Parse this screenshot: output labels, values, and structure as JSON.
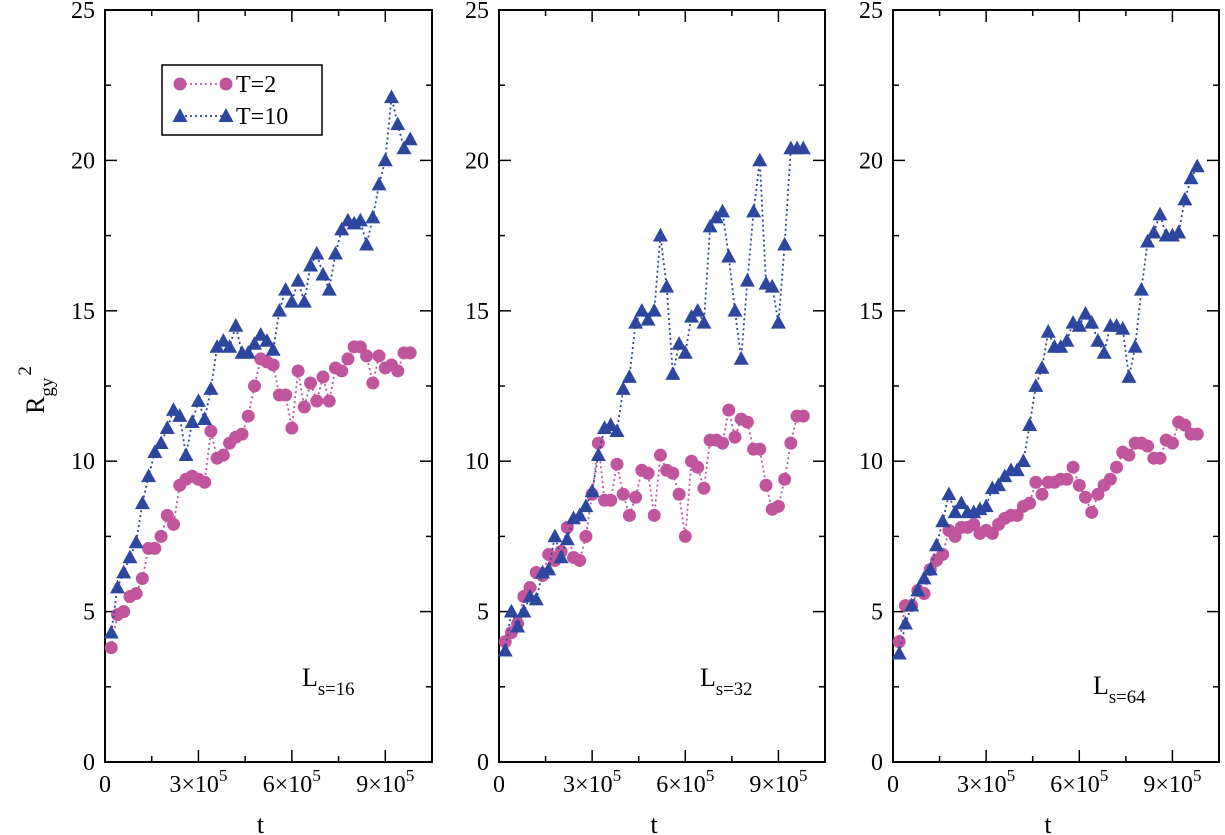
{
  "colors": {
    "T2": "#c0559e",
    "T10": "#2e479e"
  },
  "chart_data": [
    {
      "type": "line",
      "ylabel": "R_gy^2",
      "xlabel": "t",
      "annotation": "L_s=16",
      "ylim": [
        0,
        25
      ],
      "xlim": [
        0,
        1050000
      ],
      "yticks": [
        "0",
        "5",
        "10",
        "15",
        "20",
        "25"
      ],
      "xticks": [
        "0",
        "3×10^5",
        "6×10^5",
        "9×10^5"
      ],
      "legend": {
        "position": "top-left",
        "entries": [
          "T=2",
          "T=10"
        ]
      },
      "series": [
        {
          "name": "T=2",
          "marker": "circle",
          "x": [
            20000,
            40000,
            60000,
            80000,
            100000,
            120000,
            140000,
            160000,
            180000,
            200000,
            220000,
            240000,
            260000,
            280000,
            300000,
            320000,
            340000,
            360000,
            380000,
            400000,
            420000,
            440000,
            460000,
            480000,
            500000,
            520000,
            540000,
            560000,
            580000,
            600000,
            620000,
            640000,
            660000,
            680000,
            700000,
            720000,
            740000,
            760000,
            780000,
            800000,
            820000,
            840000,
            860000,
            880000,
            900000,
            920000,
            940000,
            960000,
            980000
          ],
          "y": [
            3.8,
            4.9,
            5.0,
            5.5,
            5.6,
            6.1,
            7.1,
            7.1,
            7.5,
            8.2,
            7.9,
            9.2,
            9.4,
            9.5,
            9.4,
            9.3,
            11.0,
            10.1,
            10.2,
            10.6,
            10.8,
            10.9,
            11.5,
            12.5,
            13.4,
            13.3,
            13.2,
            12.2,
            12.2,
            11.1,
            13.0,
            11.8,
            12.6,
            12.0,
            12.8,
            12.0,
            13.1,
            13.0,
            13.4,
            13.8,
            13.8,
            13.5,
            12.6,
            13.5,
            13.1,
            13.2,
            13.0,
            13.6,
            13.6
          ]
        },
        {
          "name": "T=10",
          "marker": "triangle",
          "x": [
            20000,
            40000,
            60000,
            80000,
            100000,
            120000,
            140000,
            160000,
            180000,
            200000,
            220000,
            240000,
            260000,
            280000,
            300000,
            320000,
            340000,
            360000,
            380000,
            400000,
            420000,
            440000,
            460000,
            480000,
            500000,
            520000,
            540000,
            560000,
            580000,
            600000,
            620000,
            640000,
            660000,
            680000,
            700000,
            720000,
            740000,
            760000,
            780000,
            800000,
            820000,
            840000,
            860000,
            880000,
            900000,
            920000,
            940000,
            960000,
            980000
          ],
          "y": [
            4.3,
            5.8,
            6.3,
            6.8,
            7.3,
            8.6,
            9.5,
            10.3,
            10.6,
            11.1,
            11.7,
            11.5,
            10.2,
            11.3,
            12.0,
            11.4,
            12.4,
            13.8,
            14.0,
            13.8,
            14.5,
            13.6,
            13.6,
            13.9,
            14.2,
            14.0,
            13.7,
            15.0,
            15.7,
            15.3,
            16.0,
            15.3,
            16.5,
            16.9,
            16.2,
            15.7,
            16.9,
            17.7,
            18.0,
            17.9,
            18.0,
            17.2,
            18.1,
            19.2,
            20.0,
            22.1,
            21.2,
            20.4,
            20.7
          ]
        }
      ]
    },
    {
      "type": "line",
      "xlabel": "t",
      "annotation": "L_s=32",
      "ylim": [
        0,
        25
      ],
      "xlim": [
        0,
        1050000
      ],
      "yticks": [
        "0",
        "5",
        "10",
        "15",
        "20",
        "25"
      ],
      "xticks": [
        "0",
        "3×10^5",
        "6×10^5",
        "9×10^5"
      ],
      "series": [
        {
          "name": "T=2",
          "marker": "circle",
          "x": [
            20000,
            40000,
            60000,
            80000,
            100000,
            120000,
            140000,
            160000,
            180000,
            200000,
            220000,
            240000,
            260000,
            280000,
            300000,
            320000,
            340000,
            360000,
            380000,
            400000,
            420000,
            440000,
            460000,
            480000,
            500000,
            520000,
            540000,
            560000,
            580000,
            600000,
            620000,
            640000,
            660000,
            680000,
            700000,
            720000,
            740000,
            760000,
            780000,
            800000,
            820000,
            840000,
            860000,
            880000,
            900000,
            920000,
            940000,
            960000,
            980000
          ],
          "y": [
            4.0,
            4.3,
            4.6,
            5.5,
            5.8,
            6.3,
            6.2,
            6.9,
            6.7,
            7.0,
            7.8,
            6.8,
            6.7,
            7.5,
            8.9,
            10.6,
            8.7,
            8.7,
            9.9,
            8.9,
            8.2,
            8.8,
            9.7,
            9.6,
            8.2,
            10.2,
            9.7,
            9.6,
            8.9,
            7.5,
            10.0,
            9.8,
            9.1,
            10.7,
            10.7,
            10.6,
            11.7,
            10.8,
            11.4,
            11.3,
            10.4,
            10.4,
            9.2,
            8.4,
            8.5,
            9.4,
            10.6,
            11.5,
            11.5
          ]
        },
        {
          "name": "T=10",
          "marker": "triangle",
          "x": [
            20000,
            40000,
            60000,
            80000,
            100000,
            120000,
            140000,
            160000,
            180000,
            200000,
            220000,
            240000,
            260000,
            280000,
            300000,
            320000,
            340000,
            360000,
            380000,
            400000,
            420000,
            440000,
            460000,
            480000,
            500000,
            520000,
            540000,
            560000,
            580000,
            600000,
            620000,
            640000,
            660000,
            680000,
            700000,
            720000,
            740000,
            760000,
            780000,
            800000,
            820000,
            840000,
            860000,
            880000,
            900000,
            920000,
            940000,
            960000,
            980000
          ],
          "y": [
            3.7,
            5.0,
            4.5,
            5.0,
            5.5,
            5.4,
            6.3,
            6.4,
            7.5,
            6.8,
            7.4,
            8.1,
            8.2,
            8.5,
            9.0,
            10.2,
            11.1,
            11.2,
            11.0,
            12.4,
            12.8,
            14.6,
            15.0,
            14.7,
            15.0,
            17.5,
            15.8,
            12.9,
            13.9,
            13.6,
            14.8,
            15.0,
            14.6,
            17.8,
            18.1,
            18.3,
            16.8,
            15.0,
            13.4,
            16.0,
            18.3,
            20.0,
            15.9,
            15.8,
            14.6,
            17.2,
            20.4,
            20.4,
            20.4
          ]
        }
      ]
    },
    {
      "type": "line",
      "xlabel": "t",
      "annotation": "L_s=64",
      "ylim": [
        0,
        25
      ],
      "xlim": [
        0,
        1050000
      ],
      "yticks": [
        "0",
        "5",
        "10",
        "15",
        "20",
        "25"
      ],
      "xticks": [
        "0",
        "3×10^5",
        "6×10^5",
        "9×10^5"
      ],
      "series": [
        {
          "name": "T=2",
          "marker": "circle",
          "x": [
            20000,
            40000,
            60000,
            80000,
            100000,
            120000,
            140000,
            160000,
            180000,
            200000,
            220000,
            240000,
            260000,
            280000,
            300000,
            320000,
            340000,
            360000,
            380000,
            400000,
            420000,
            440000,
            460000,
            480000,
            500000,
            520000,
            540000,
            560000,
            580000,
            600000,
            620000,
            640000,
            660000,
            680000,
            700000,
            720000,
            740000,
            760000,
            780000,
            800000,
            820000,
            840000,
            860000,
            880000,
            900000,
            920000,
            940000,
            960000,
            980000
          ],
          "y": [
            4.0,
            5.2,
            5.2,
            5.7,
            5.6,
            6.4,
            6.7,
            6.9,
            7.7,
            7.5,
            7.8,
            7.8,
            7.9,
            7.6,
            7.7,
            7.6,
            7.9,
            8.1,
            8.2,
            8.2,
            8.5,
            8.6,
            9.3,
            8.9,
            9.3,
            9.3,
            9.4,
            9.4,
            9.8,
            9.2,
            8.8,
            8.3,
            8.9,
            9.2,
            9.4,
            9.8,
            10.3,
            10.2,
            10.6,
            10.6,
            10.5,
            10.1,
            10.1,
            10.7,
            10.6,
            11.3,
            11.2,
            10.9,
            10.9
          ]
        },
        {
          "name": "T=10",
          "marker": "triangle",
          "x": [
            20000,
            40000,
            60000,
            80000,
            100000,
            120000,
            140000,
            160000,
            180000,
            200000,
            220000,
            240000,
            260000,
            280000,
            300000,
            320000,
            340000,
            360000,
            380000,
            400000,
            420000,
            440000,
            460000,
            480000,
            500000,
            520000,
            540000,
            560000,
            580000,
            600000,
            620000,
            640000,
            660000,
            680000,
            700000,
            720000,
            740000,
            760000,
            780000,
            800000,
            820000,
            840000,
            860000,
            880000,
            900000,
            920000,
            940000,
            960000,
            980000
          ],
          "y": [
            3.6,
            4.6,
            5.2,
            5.7,
            6.1,
            6.4,
            7.2,
            8.0,
            8.9,
            8.3,
            8.6,
            8.3,
            8.3,
            8.4,
            8.5,
            9.1,
            9.2,
            9.5,
            9.7,
            9.7,
            10.0,
            11.2,
            12.5,
            13.1,
            14.3,
            13.8,
            13.8,
            14.0,
            14.6,
            14.5,
            14.9,
            14.6,
            14.0,
            13.6,
            14.5,
            14.5,
            14.4,
            12.8,
            13.8,
            15.7,
            17.3,
            17.6,
            18.2,
            17.5,
            17.5,
            17.6,
            18.7,
            19.4,
            19.8
          ]
        }
      ]
    }
  ]
}
